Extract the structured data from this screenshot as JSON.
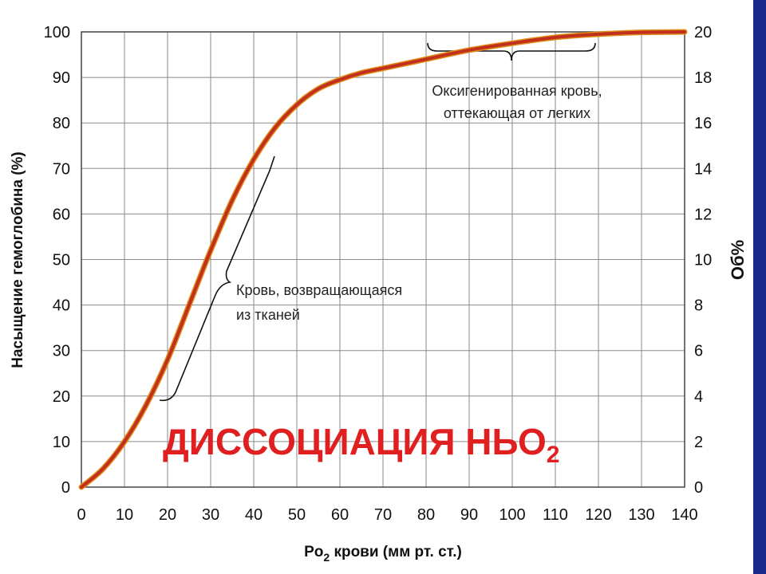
{
  "colors": {
    "curve": "#c0301c",
    "curve_edge": "#e08a1a",
    "overlay": "#e02020",
    "side_bar": "#1a2a8c",
    "grid": "#8a8a8a"
  },
  "chart_data": {
    "type": "line",
    "xlabel_main": "Po",
    "xlabel_sub": "2",
    "xlabel_rest": " крови (мм рт. ст.)",
    "ylabel_left": "Насыщение гемоглобина (%)",
    "ylabel_right": "Об%",
    "xlim": [
      0,
      140
    ],
    "ylim": [
      0,
      100
    ],
    "y2lim": [
      0,
      20
    ],
    "grid": true,
    "x_ticks": [
      "0",
      "10",
      "20",
      "30",
      "40",
      "50",
      "60",
      "70",
      "80",
      "90",
      "100",
      "110",
      "120",
      "130",
      "140"
    ],
    "y_ticks": [
      "0",
      "10",
      "20",
      "30",
      "40",
      "50",
      "60",
      "70",
      "80",
      "90",
      "100"
    ],
    "y2_ticks": [
      "0",
      "2",
      "4",
      "6",
      "8",
      "10",
      "12",
      "14",
      "16",
      "18",
      "20"
    ],
    "series": [
      {
        "x": [
          0,
          5,
          10,
          15,
          20,
          25,
          30,
          35,
          40,
          45,
          50,
          55,
          60,
          65,
          70,
          80,
          90,
          100,
          110,
          120,
          130,
          140
        ],
        "y": [
          0,
          4,
          10,
          18,
          28,
          40,
          52,
          63,
          72,
          79,
          84,
          87.5,
          89.5,
          91,
          92,
          94,
          96,
          97.5,
          98.8,
          99.5,
          99.9,
          100
        ]
      }
    ],
    "annotations": [
      {
        "lines": [
          "Оксигенированная кровь,",
          "оттекающая от легких"
        ],
        "bracket_x": [
          80,
          120
        ]
      },
      {
        "lines": [
          "Кровь, возвращающаяся",
          "из тканей"
        ],
        "bracket_x": [
          20,
          40
        ]
      }
    ]
  },
  "overlay_title": {
    "main": "ДИССОЦИАЦИЯ НЬО",
    "sub": "2"
  }
}
